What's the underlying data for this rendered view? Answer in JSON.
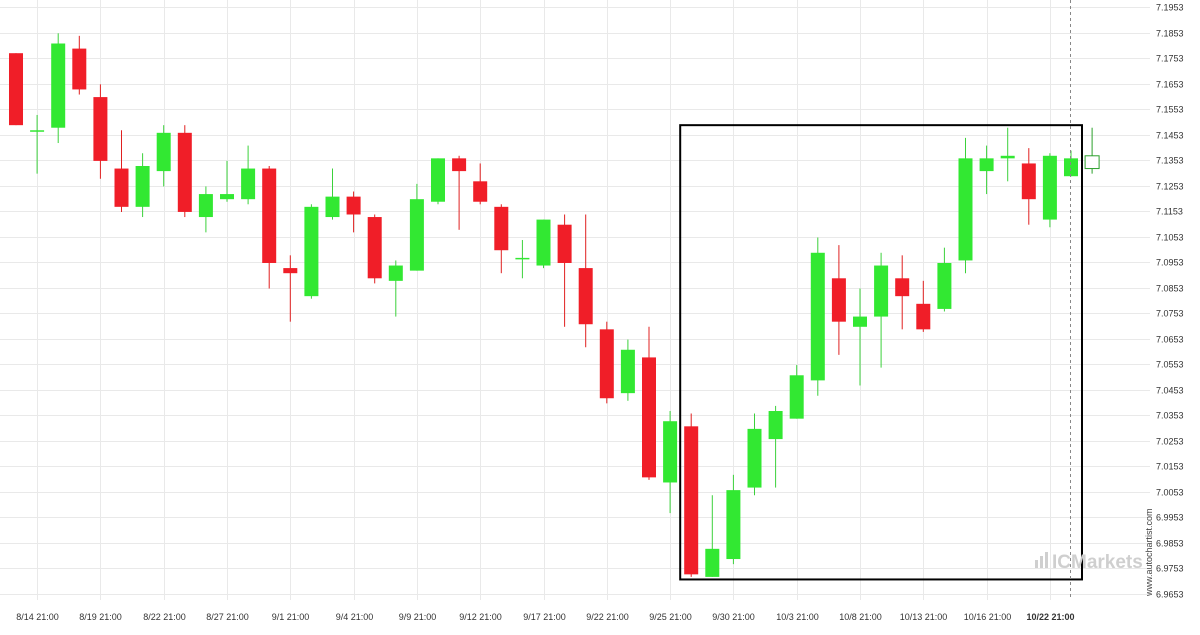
{
  "chart_data": {
    "type": "candlestick",
    "title": "",
    "xlabel": "",
    "ylabel": "",
    "ylim": [
      6.9653,
      7.1953
    ],
    "grid": true,
    "y_ticks": [
      "7.1953",
      "7.1853",
      "7.1753",
      "7.1653",
      "7.1553",
      "7.1453",
      "7.1353",
      "7.1253",
      "7.1153",
      "7.1053",
      "7.0953",
      "7.0853",
      "7.0753",
      "7.0653",
      "7.0553",
      "7.0453",
      "7.0353",
      "7.0253",
      "7.0153",
      "7.0053",
      "6.9953",
      "6.9853",
      "6.9753",
      "6.9653"
    ],
    "x_ticks": [
      {
        "index": 1,
        "label": "8/14 21:00"
      },
      {
        "index": 4,
        "label": "8/19 21:00"
      },
      {
        "index": 7,
        "label": "8/22 21:00"
      },
      {
        "index": 10,
        "label": "8/27 21:00"
      },
      {
        "index": 13,
        "label": "9/1 21:00"
      },
      {
        "index": 16,
        "label": "9/4 21:00"
      },
      {
        "index": 19,
        "label": "9/9 21:00"
      },
      {
        "index": 22,
        "label": "9/12 21:00"
      },
      {
        "index": 25,
        "label": "9/17 21:00"
      },
      {
        "index": 28,
        "label": "9/22 21:00"
      },
      {
        "index": 31,
        "label": "9/25 21:00"
      },
      {
        "index": 34,
        "label": "9/30 21:00"
      },
      {
        "index": 37,
        "label": "10/3 21:00"
      },
      {
        "index": 40,
        "label": "10/8 21:00"
      },
      {
        "index": 43,
        "label": "10/13 21:00"
      },
      {
        "index": 46,
        "label": "10/16 21:00"
      },
      {
        "index": 49,
        "label": "10/22 21:00",
        "current": true
      }
    ],
    "candles": [
      {
        "o": 7.1772,
        "h": 7.1772,
        "l": 7.149,
        "c": 7.149
      },
      {
        "o": 7.147,
        "h": 7.153,
        "l": 7.13,
        "c": 7.147
      },
      {
        "o": 7.148,
        "h": 7.185,
        "l": 7.142,
        "c": 7.181
      },
      {
        "o": 7.179,
        "h": 7.184,
        "l": 7.161,
        "c": 7.163
      },
      {
        "o": 7.16,
        "h": 7.165,
        "l": 7.128,
        "c": 7.135
      },
      {
        "o": 7.132,
        "h": 7.147,
        "l": 7.115,
        "c": 7.117
      },
      {
        "o": 7.117,
        "h": 7.138,
        "l": 7.113,
        "c": 7.133
      },
      {
        "o": 7.131,
        "h": 7.149,
        "l": 7.125,
        "c": 7.146
      },
      {
        "o": 7.146,
        "h": 7.149,
        "l": 7.113,
        "c": 7.115
      },
      {
        "o": 7.113,
        "h": 7.125,
        "l": 7.107,
        "c": 7.122
      },
      {
        "o": 7.12,
        "h": 7.135,
        "l": 7.119,
        "c": 7.122
      },
      {
        "o": 7.12,
        "h": 7.141,
        "l": 7.118,
        "c": 7.132
      },
      {
        "o": 7.132,
        "h": 7.133,
        "l": 7.085,
        "c": 7.095
      },
      {
        "o": 7.093,
        "h": 7.098,
        "l": 7.072,
        "c": 7.091
      },
      {
        "o": 7.082,
        "h": 7.118,
        "l": 7.081,
        "c": 7.117
      },
      {
        "o": 7.113,
        "h": 7.132,
        "l": 7.112,
        "c": 7.121
      },
      {
        "o": 7.121,
        "h": 7.123,
        "l": 7.107,
        "c": 7.114
      },
      {
        "o": 7.113,
        "h": 7.114,
        "l": 7.087,
        "c": 7.089
      },
      {
        "o": 7.088,
        "h": 7.096,
        "l": 7.074,
        "c": 7.094
      },
      {
        "o": 7.092,
        "h": 7.126,
        "l": 7.092,
        "c": 7.12
      },
      {
        "o": 7.119,
        "h": 7.136,
        "l": 7.118,
        "c": 7.136
      },
      {
        "o": 7.136,
        "h": 7.137,
        "l": 7.108,
        "c": 7.131
      },
      {
        "o": 7.127,
        "h": 7.134,
        "l": 7.118,
        "c": 7.119
      },
      {
        "o": 7.117,
        "h": 7.118,
        "l": 7.091,
        "c": 7.1
      },
      {
        "o": 7.097,
        "h": 7.104,
        "l": 7.089,
        "c": 7.097
      },
      {
        "o": 7.094,
        "h": 7.112,
        "l": 7.093,
        "c": 7.112
      },
      {
        "o": 7.11,
        "h": 7.114,
        "l": 7.07,
        "c": 7.095
      },
      {
        "o": 7.093,
        "h": 7.114,
        "l": 7.062,
        "c": 7.071
      },
      {
        "o": 7.069,
        "h": 7.072,
        "l": 7.04,
        "c": 7.042
      },
      {
        "o": 7.044,
        "h": 7.065,
        "l": 7.041,
        "c": 7.061
      },
      {
        "o": 7.058,
        "h": 7.07,
        "l": 7.01,
        "c": 7.011
      },
      {
        "o": 7.009,
        "h": 7.037,
        "l": 6.997,
        "c": 7.033
      },
      {
        "o": 7.031,
        "h": 7.036,
        "l": 6.972,
        "c": 6.973
      },
      {
        "o": 6.972,
        "h": 7.004,
        "l": 6.972,
        "c": 6.983
      },
      {
        "o": 6.979,
        "h": 7.012,
        "l": 6.977,
        "c": 7.006
      },
      {
        "o": 7.007,
        "h": 7.036,
        "l": 7.004,
        "c": 7.03
      },
      {
        "o": 7.026,
        "h": 7.039,
        "l": 7.007,
        "c": 7.037
      },
      {
        "o": 7.034,
        "h": 7.055,
        "l": 7.034,
        "c": 7.051
      },
      {
        "o": 7.049,
        "h": 7.105,
        "l": 7.043,
        "c": 7.099
      },
      {
        "o": 7.089,
        "h": 7.102,
        "l": 7.059,
        "c": 7.072
      },
      {
        "o": 7.07,
        "h": 7.085,
        "l": 7.047,
        "c": 7.074
      },
      {
        "o": 7.074,
        "h": 7.099,
        "l": 7.054,
        "c": 7.094
      },
      {
        "o": 7.089,
        "h": 7.098,
        "l": 7.069,
        "c": 7.082
      },
      {
        "o": 7.079,
        "h": 7.088,
        "l": 7.068,
        "c": 7.069
      },
      {
        "o": 7.077,
        "h": 7.101,
        "l": 7.076,
        "c": 7.095
      },
      {
        "o": 7.096,
        "h": 7.144,
        "l": 7.091,
        "c": 7.136
      },
      {
        "o": 7.131,
        "h": 7.141,
        "l": 7.122,
        "c": 7.136
      },
      {
        "o": 7.136,
        "h": 7.148,
        "l": 7.127,
        "c": 7.137
      },
      {
        "o": 7.134,
        "h": 7.14,
        "l": 7.11,
        "c": 7.12
      },
      {
        "o": 7.112,
        "h": 7.138,
        "l": 7.109,
        "c": 7.137
      },
      {
        "o": 7.129,
        "h": 7.139,
        "l": 7.129,
        "c": 7.136
      },
      {
        "o": 7.132,
        "h": 7.148,
        "l": 7.13,
        "c": 7.137,
        "forming": true
      }
    ],
    "pattern_box": {
      "from_index": 32,
      "to_index": 50,
      "y_top": 7.149,
      "y_bottom": 6.971
    },
    "current_marker_index": 50,
    "colors": {
      "up": "#32e832",
      "down": "#f01e28",
      "wick": "#3bd13b",
      "wick_down": "#e02020",
      "forming": "#2ca02c",
      "grid": "#e9e9e9",
      "box": "#000000",
      "dashed": "#888888"
    }
  },
  "watermark": {
    "site": "www.autochartist.com",
    "brand": "ICMarkets"
  }
}
